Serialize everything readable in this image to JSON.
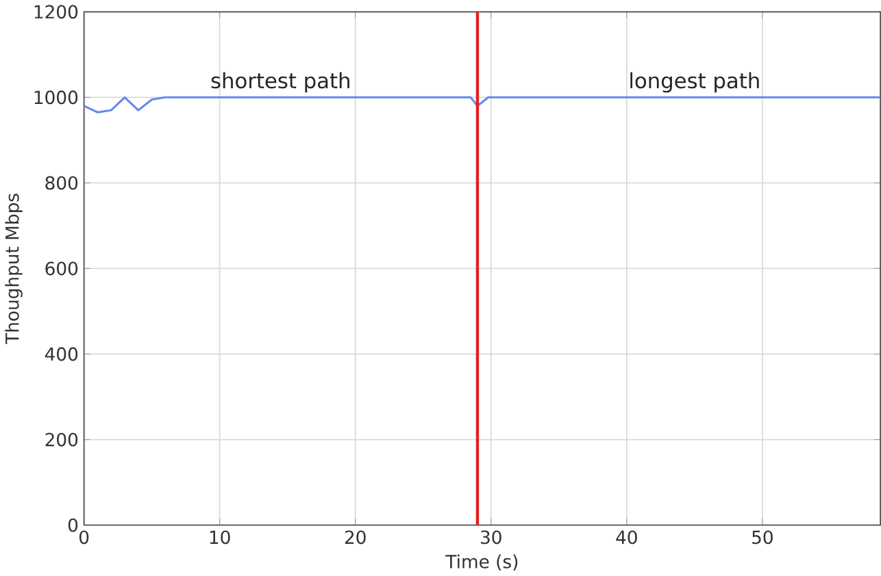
{
  "chart_data": {
    "type": "line",
    "xlabel": "Time (s)",
    "ylabel": "Thoughput Mbps",
    "xlim": [
      0,
      58.7
    ],
    "ylim": [
      0,
      1200
    ],
    "xticks": [
      0,
      10,
      20,
      30,
      40,
      50
    ],
    "yticks": [
      0,
      200,
      400,
      600,
      800,
      1000,
      1200
    ],
    "grid": true,
    "marker": "none",
    "line_style": "solid",
    "series": [
      {
        "color": "#6688ee",
        "x": [
          0,
          1,
          2,
          3,
          4,
          5,
          6,
          10,
          20,
          28,
          28.5,
          29,
          29.8,
          30,
          40,
          50,
          58.7
        ],
        "values": [
          980,
          965,
          970,
          1000,
          970,
          995,
          1000,
          1000,
          1000,
          1000,
          1000,
          980,
          1000,
          1000,
          1000,
          1000,
          1000
        ]
      }
    ],
    "ref_lines": [
      {
        "axis": "x",
        "value": 29,
        "color": "#e02020",
        "line_style": "solid"
      }
    ],
    "annotations": [
      {
        "text": "shortest path",
        "x": 14.5,
        "y": 1000
      },
      {
        "text": "longest path",
        "x": 45,
        "y": 1000
      }
    ]
  }
}
